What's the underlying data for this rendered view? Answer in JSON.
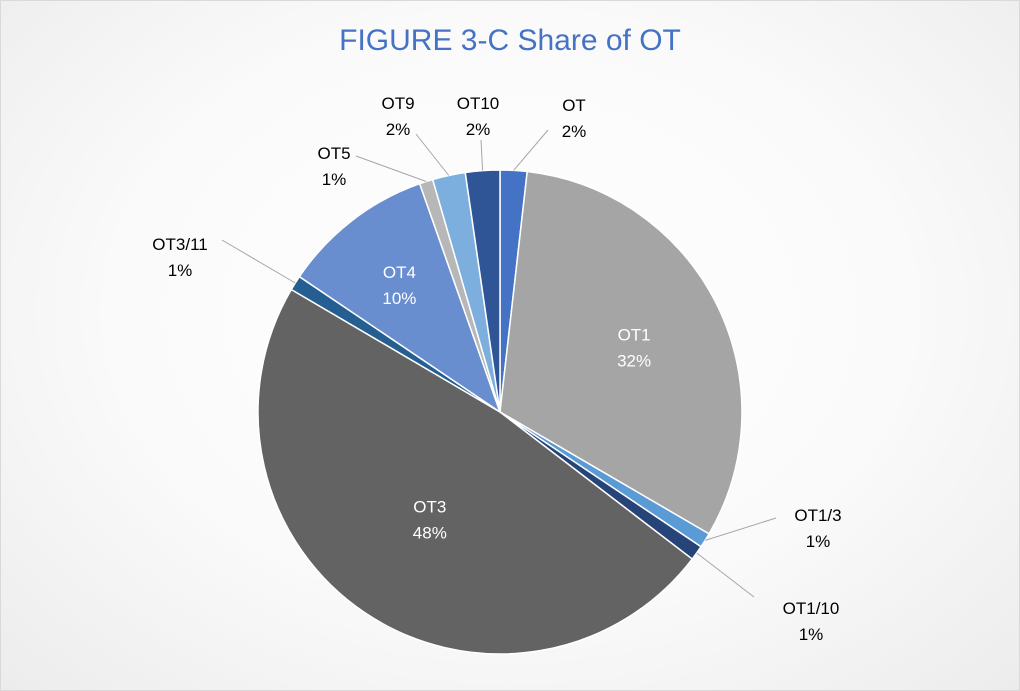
{
  "chart_data": {
    "type": "pie",
    "title": "FIGURE 3-C Share of OT",
    "categories": [
      "OT",
      "OT1",
      "OT1/3",
      "OT1/10",
      "OT3",
      "OT3/11",
      "OT4",
      "OT5",
      "OT9",
      "OT10"
    ],
    "values": [
      1.8,
      31.7,
      1.0,
      1.0,
      48.2,
      1.0,
      10.2,
      0.9,
      2.2,
      2.3
    ],
    "value_labels": [
      "2%",
      "32%",
      "1%",
      "1%",
      "48%",
      "1%",
      "10%",
      "1%",
      "2%",
      "2%"
    ],
    "colors": [
      "#4472c4",
      "#a5a5a5",
      "#5b9bd5",
      "#264478",
      "#636363",
      "#255e91",
      "#698ed0",
      "#b7b7b7",
      "#7cafdd",
      "#2f5597"
    ],
    "label_colors": [
      "#000000",
      "#ffffff",
      "#000000",
      "#000000",
      "#ffffff",
      "#000000",
      "#ffffff",
      "#000000",
      "#000000",
      "#000000"
    ],
    "start_angle_deg": 0,
    "direction": "clockwise",
    "legend": "none",
    "data_labels": "category name and percentage"
  }
}
